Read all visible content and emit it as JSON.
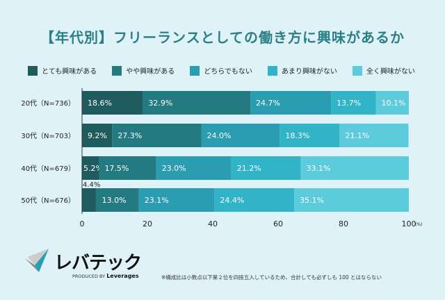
{
  "title": "【年代別】フリーランスとしての働き方に興味があるか",
  "chart_data": {
    "type": "bar",
    "orientation": "horizontal",
    "stacked": true,
    "categories": [
      "20代（N=736）",
      "30代（N=703）",
      "40代（N=679）",
      "50代（N=676）"
    ],
    "series": [
      {
        "name": "とても興味がある",
        "color": "#1f5c5f",
        "values": [
          18.6,
          9.2,
          5.2,
          4.4
        ]
      },
      {
        "name": "やや興味がある",
        "color": "#237a80",
        "values": [
          32.9,
          27.3,
          17.5,
          13.0
        ]
      },
      {
        "name": "どちらでもない",
        "color": "#2a9db0",
        "values": [
          24.7,
          24.0,
          23.0,
          23.1
        ]
      },
      {
        "name": "あまり興味がない",
        "color": "#31b3c8",
        "values": [
          13.7,
          18.3,
          21.2,
          24.4
        ]
      },
      {
        "name": "全く興味がない",
        "color": "#5ccbdb",
        "values": [
          10.1,
          21.1,
          33.1,
          35.1
        ]
      }
    ],
    "xlim": [
      0,
      100
    ],
    "xticks": [
      "0",
      "20",
      "40",
      "60",
      "80",
      "100"
    ],
    "xunit": "(%)",
    "grid": false,
    "legend": "top"
  },
  "footnote": "※構成比は小数点以下第２位を四捨五入しているため、合計しても必ずしも 100 とはならない",
  "logo": {
    "name": "レバテック",
    "sub_prefix": "PRODUCED BY",
    "sub_brand": "Leverages"
  }
}
